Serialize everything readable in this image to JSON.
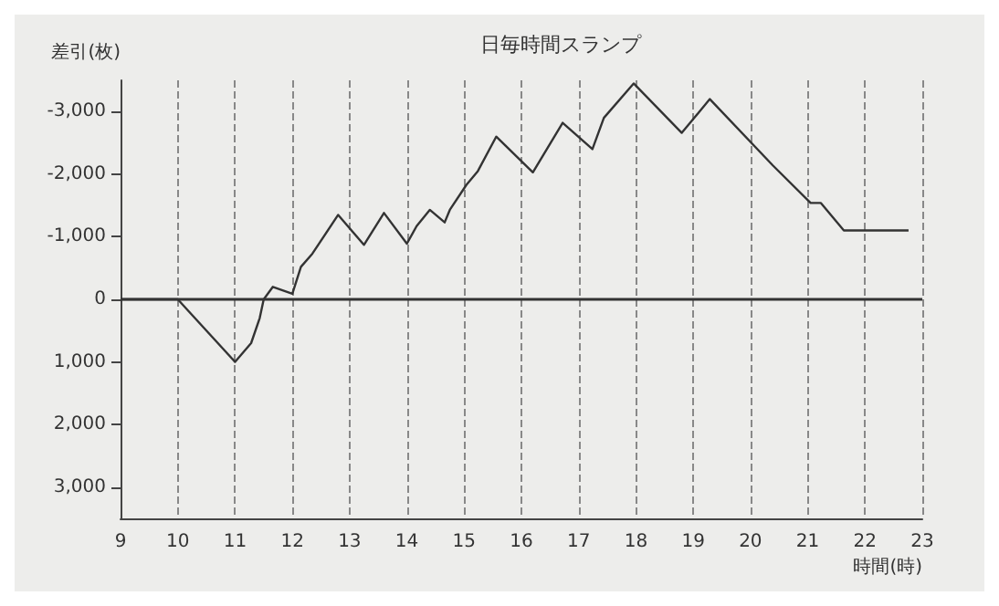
{
  "chart_data": {
    "type": "line",
    "title": "日毎時間スランプ",
    "xlabel": "時間(時)",
    "ylabel": "差引(枚)",
    "series": [
      {
        "color": "#333333",
        "x": [
          9,
          10,
          10.2,
          11,
          11.28,
          11.43,
          11.5,
          11.66,
          12,
          12.15,
          12.35,
          12.8,
          13.25,
          13.6,
          14,
          14.17,
          14.4,
          14.66,
          14.75,
          15.04,
          15.24,
          15.56,
          16.2,
          16.72,
          17.24,
          17.44,
          17.96,
          18.8,
          19.29,
          20.39,
          21.05,
          21.23,
          21.63,
          22.76
        ],
        "values": [
          0,
          0,
          200,
          1000,
          700,
          300,
          0,
          -200,
          -90,
          -520,
          -730,
          -1350,
          -870,
          -1380,
          -890,
          -1170,
          -1430,
          -1230,
          -1430,
          -1830,
          -2050,
          -2600,
          -2030,
          -2820,
          -2400,
          -2900,
          -3450,
          -2660,
          -3200,
          -2140,
          -1540,
          -1540,
          -1100,
          -1100
        ]
      }
    ],
    "xlim": [
      9,
      23
    ],
    "xticks": [
      9,
      10,
      11,
      12,
      13,
      14,
      15,
      16,
      17,
      18,
      19,
      20,
      21,
      22,
      23
    ],
    "ylim": [
      3500,
      -3500
    ],
    "yticks": [
      {
        "value": -3000,
        "label": "-3,000"
      },
      {
        "value": -2000,
        "label": "-2,000"
      },
      {
        "value": -1000,
        "label": "-1,000"
      },
      0,
      {
        "value": 1000,
        "label": "1,000"
      },
      {
        "value": 2000,
        "label": "2,000"
      },
      {
        "value": 3000,
        "label": "3,000"
      }
    ],
    "ref_lines": [
      {
        "axis": "y",
        "value": 0,
        "color": "#333333"
      }
    ],
    "grid": "x",
    "marker": "none",
    "line_style": "solid"
  }
}
